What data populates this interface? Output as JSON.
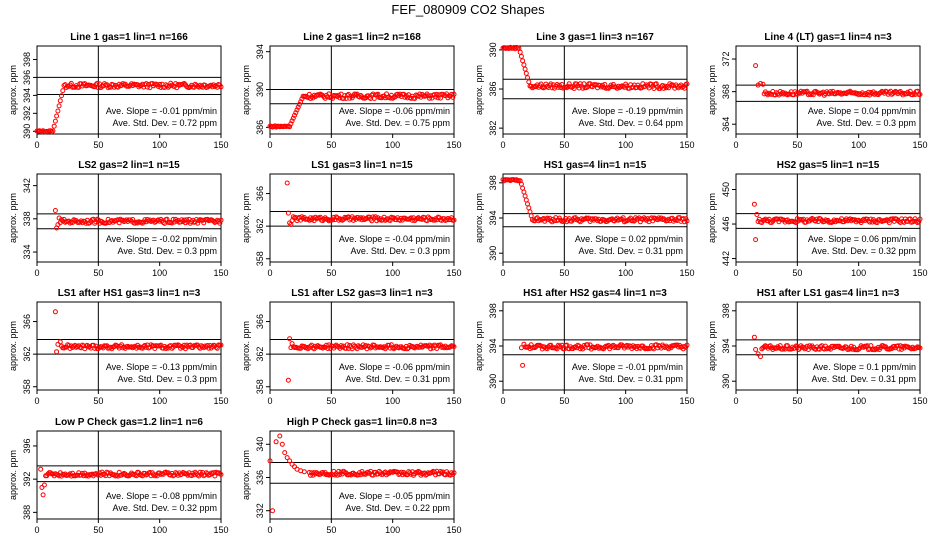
{
  "figure": {
    "title": "FEF_080909  CO2 Shapes"
  },
  "colors": {
    "points": "#ff0000",
    "axes": "#000000"
  },
  "xlabel": "",
  "ylabel": "approx. ppm",
  "slope_prefix": "Ave. Slope = ",
  "slope_unit": " ppm/min",
  "std_prefix": "Ave. Std. Dev. = ",
  "std_unit": " ppm",
  "chart_data": [
    {
      "type": "scatter",
      "title": "Line 1 gas=1 lin=1 n=166",
      "xlim": [
        0,
        150
      ],
      "xticks": [
        0,
        50,
        100,
        150
      ],
      "ylim": [
        389.7,
        399.5
      ],
      "yticks": [
        390,
        392,
        394,
        396,
        398
      ],
      "hlines": [
        394.1,
        396.0
      ],
      "vline": 50,
      "slope": "-0.01",
      "std": "0.72",
      "start": 390.0,
      "rise_end": 22,
      "level": 395.1,
      "initial_points": [],
      "outliers": []
    },
    {
      "type": "scatter",
      "title": "Line 2 gas=1 lin=2 n=168",
      "xlim": [
        0,
        150
      ],
      "xticks": [
        0,
        50,
        100,
        150
      ],
      "ylim": [
        385.3,
        394.6
      ],
      "yticks": [
        386,
        390,
        394
      ],
      "hlines": [
        388.5,
        390.0
      ],
      "vline": 50,
      "slope": "-0.06",
      "std": "0.75",
      "start": 386.1,
      "rise_end": 27,
      "level": 389.3,
      "initial_points": [],
      "outliers": []
    },
    {
      "type": "scatter",
      "title": "Line 3 gas=1 lin=3 n=167",
      "xlim": [
        0,
        150
      ],
      "xticks": [
        0,
        50,
        100,
        150
      ],
      "ylim": [
        381.4,
        390.4
      ],
      "yticks": [
        382,
        386,
        390
      ],
      "hlines": [
        385.0,
        387.0
      ],
      "vline": 50,
      "slope": "-0.19",
      "std": "0.64",
      "start": 390.2,
      "rise_end": 22,
      "level": 386.3,
      "initial_points": [],
      "outliers": []
    },
    {
      "type": "scatter",
      "title": "Line 4 (LT) gas=1 lin=4 n=3",
      "xlim": [
        0,
        150
      ],
      "xticks": [
        0,
        50,
        100,
        150
      ],
      "ylim": [
        362.8,
        373.6
      ],
      "yticks": [
        364,
        368,
        372
      ],
      "hlines": [
        366.8,
        368.8
      ],
      "vline": 50,
      "slope": "0.04",
      "std": "0.3",
      "start": null,
      "rise_end": null,
      "level": 367.8,
      "initial_points": [
        [
          16,
          371.2
        ],
        [
          18,
          368.8
        ],
        [
          20,
          369.0
        ],
        [
          22,
          368.9
        ]
      ],
      "outliers": []
    },
    {
      "type": "scatter",
      "title": "LS2 gas=2 lin=1 n=15",
      "xlim": [
        0,
        150
      ],
      "xticks": [
        0,
        50,
        100,
        150
      ],
      "ylim": [
        332.8,
        343.4
      ],
      "yticks": [
        334,
        338,
        342
      ],
      "hlines": [
        336.8,
        338.6
      ],
      "vline": 50,
      "slope": "-0.02",
      "std": "0.3",
      "start": null,
      "rise_end": null,
      "level": 337.7,
      "initial_points": [
        [
          15,
          339.0
        ],
        [
          16,
          336.9
        ],
        [
          17,
          337.3
        ],
        [
          18,
          338.1
        ]
      ],
      "outliers": []
    },
    {
      "type": "scatter",
      "title": "LS1 gas=3 lin=1 n=15",
      "xlim": [
        0,
        150
      ],
      "xticks": [
        0,
        50,
        100,
        150
      ],
      "ylim": [
        357.6,
        368.4
      ],
      "yticks": [
        358,
        362,
        366
      ],
      "hlines": [
        362.0,
        363.8
      ],
      "vline": 50,
      "slope": "-0.04",
      "std": "0.3",
      "start": null,
      "rise_end": null,
      "level": 362.9,
      "initial_points": [
        [
          14,
          367.3
        ],
        [
          15,
          363.6
        ],
        [
          16,
          362.4
        ],
        [
          17,
          362.2
        ]
      ],
      "outliers": []
    },
    {
      "type": "scatter",
      "title": "HS1 gas=4 lin=1 n=15",
      "xlim": [
        0,
        150
      ],
      "xticks": [
        0,
        50,
        100,
        150
      ],
      "ylim": [
        389.0,
        399.0
      ],
      "yticks": [
        390,
        394,
        398
      ],
      "hlines": [
        393.0,
        394.5
      ],
      "vline": 50,
      "slope": "0.02",
      "std": "0.31",
      "start": 398.3,
      "rise_end": 24,
      "level": 393.8,
      "initial_points": [],
      "outliers": []
    },
    {
      "type": "scatter",
      "title": "HS2 gas=5 lin=1 n=15",
      "xlim": [
        0,
        150
      ],
      "xticks": [
        0,
        50,
        100,
        150
      ],
      "ylim": [
        441.6,
        451.8
      ],
      "yticks": [
        442,
        446,
        450
      ],
      "hlines": [
        445.5,
        447.2
      ],
      "vline": 50,
      "slope": "0.06",
      "std": "0.32",
      "start": null,
      "rise_end": null,
      "level": 446.4,
      "initial_points": [
        [
          15,
          448.3
        ],
        [
          16,
          444.2
        ],
        [
          17,
          447.1
        ],
        [
          18,
          446.3
        ]
      ],
      "outliers": []
    },
    {
      "type": "scatter",
      "title": "LS1 after HS1 gas=3 lin=1 n=3",
      "xlim": [
        0,
        150
      ],
      "xticks": [
        0,
        50,
        100,
        150
      ],
      "ylim": [
        357.6,
        368.4
      ],
      "yticks": [
        358,
        362,
        366
      ],
      "hlines": [
        362.0,
        363.8
      ],
      "vline": 50,
      "slope": "-0.13",
      "std": "0.3",
      "start": null,
      "rise_end": null,
      "level": 362.9,
      "initial_points": [
        [
          15,
          367.2
        ],
        [
          16,
          362.3
        ],
        [
          17,
          363.2
        ],
        [
          19,
          363.5
        ]
      ],
      "outliers": []
    },
    {
      "type": "scatter",
      "title": "LS1 after LS2 gas=3 lin=1 n=3",
      "xlim": [
        0,
        150
      ],
      "xticks": [
        0,
        50,
        100,
        150
      ],
      "ylim": [
        357.6,
        368.4
      ],
      "yticks": [
        358,
        362,
        366
      ],
      "hlines": [
        362.0,
        363.8
      ],
      "vline": 50,
      "slope": "-0.06",
      "std": "0.31",
      "start": null,
      "rise_end": null,
      "level": 362.9,
      "initial_points": [
        [
          15,
          358.8
        ],
        [
          16,
          363.9
        ],
        [
          17,
          362.8
        ],
        [
          18,
          363.3
        ]
      ],
      "outliers": []
    },
    {
      "type": "scatter",
      "title": "HS1 after HS2 gas=4 lin=1 n=3",
      "xlim": [
        0,
        150
      ],
      "xticks": [
        0,
        50,
        100,
        150
      ],
      "ylim": [
        389.0,
        399.0
      ],
      "yticks": [
        390,
        394,
        398
      ],
      "hlines": [
        393.0,
        394.7
      ],
      "vline": 50,
      "slope": "-0.01",
      "std": "0.31",
      "start": null,
      "rise_end": null,
      "level": 393.9,
      "initial_points": [
        [
          15,
          393.8
        ],
        [
          16,
          391.8
        ],
        [
          17,
          394.2
        ],
        [
          18,
          393.9
        ]
      ],
      "outliers": []
    },
    {
      "type": "scatter",
      "title": "HS1 after LS1 gas=4 lin=1 n=3",
      "xlim": [
        0,
        150
      ],
      "xticks": [
        0,
        50,
        100,
        150
      ],
      "ylim": [
        389.0,
        399.0
      ],
      "yticks": [
        390,
        394,
        398
      ],
      "hlines": [
        393.0,
        394.7
      ],
      "vline": 50,
      "slope": "0.1",
      "std": "0.31",
      "start": null,
      "rise_end": null,
      "level": 393.8,
      "initial_points": [
        [
          15,
          395.0
        ],
        [
          16,
          393.6
        ],
        [
          18,
          393.1
        ],
        [
          20,
          392.8
        ]
      ],
      "outliers": []
    },
    {
      "type": "scatter",
      "title": "Low P Check gas=1.2 lin=1 n=6",
      "xlim": [
        0,
        150
      ],
      "xticks": [
        0,
        50,
        100,
        150
      ],
      "ylim": [
        387.2,
        397.8
      ],
      "yticks": [
        388,
        392,
        396
      ],
      "hlines": [
        391.7,
        393.6
      ],
      "vline": 50,
      "slope": "-0.08",
      "std": "0.32",
      "start": null,
      "rise_end": null,
      "level": 392.6,
      "initial_points": [
        [
          3,
          393.2
        ],
        [
          4,
          391.0
        ],
        [
          5,
          390.1
        ],
        [
          6,
          391.3
        ],
        [
          7,
          392.4
        ]
      ],
      "outliers": []
    },
    {
      "type": "scatter",
      "title": "High P Check gas=1 lin=0.8 n=3",
      "xlim": [
        0,
        150
      ],
      "xticks": [
        0,
        50,
        100,
        150
      ],
      "ylim": [
        331.0,
        341.6
      ],
      "yticks": [
        332,
        336,
        340
      ],
      "hlines": [
        335.3,
        337.8
      ],
      "vline": 50,
      "slope": "-0.05",
      "std": "0.22",
      "start": null,
      "rise_end": null,
      "level": 336.5,
      "initial_points": [
        [
          0,
          338.0
        ],
        [
          2,
          332.0
        ],
        [
          5,
          340.3
        ],
        [
          8,
          341.0
        ],
        [
          10,
          340.0
        ],
        [
          12,
          339.0
        ],
        [
          14,
          338.4
        ],
        [
          16,
          338.0
        ],
        [
          18,
          337.6
        ],
        [
          20,
          337.3
        ],
        [
          22,
          337.0
        ],
        [
          25,
          336.8
        ],
        [
          28,
          336.7
        ],
        [
          32,
          336.6
        ]
      ],
      "outliers": []
    }
  ]
}
